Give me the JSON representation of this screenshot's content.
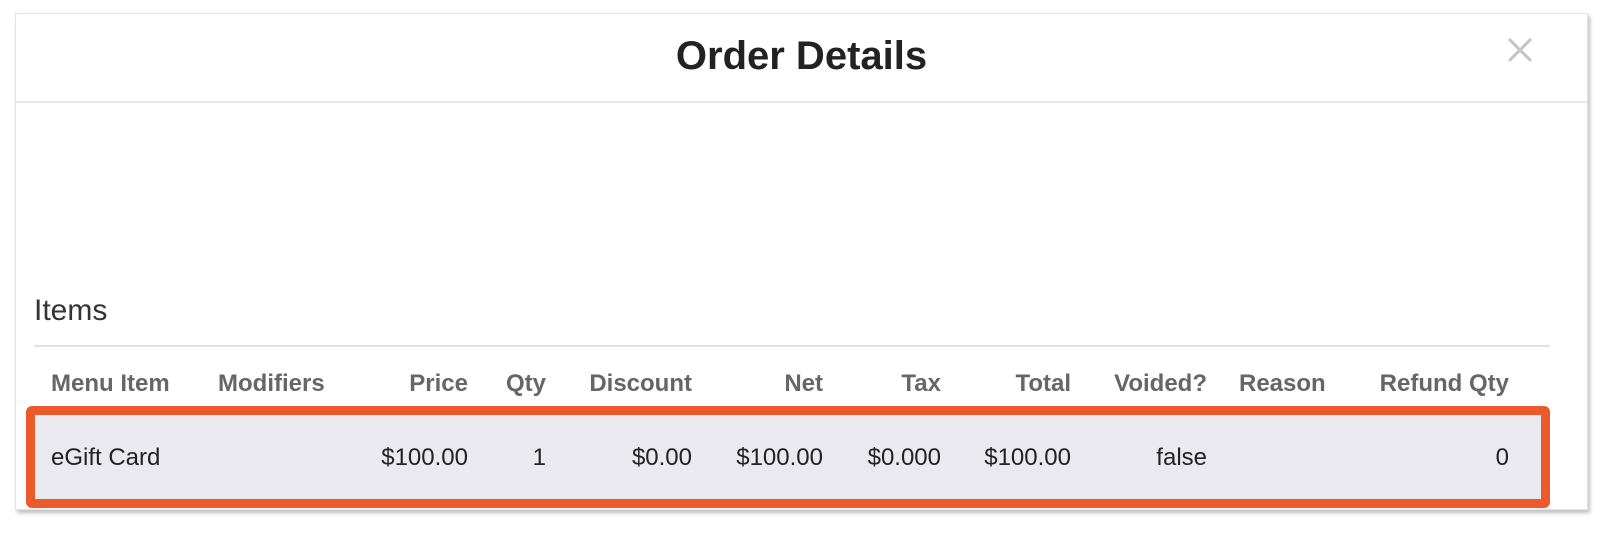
{
  "modal": {
    "title": "Order Details",
    "close_icon": "close-x-icon"
  },
  "items": {
    "label": "Items",
    "columns": [
      "Menu Item",
      "Modifiers",
      "Price",
      "Qty",
      "Discount",
      "Net",
      "Tax",
      "Total",
      "Voided?",
      "Reason",
      "Refund Qty"
    ],
    "rows": [
      [
        "eGift Card",
        "",
        "$100.00",
        "1",
        "$0.00",
        "$100.00",
        "$0.000",
        "$100.00",
        "false",
        "",
        "0"
      ]
    ]
  },
  "highlight_color": "#ea5a2a"
}
